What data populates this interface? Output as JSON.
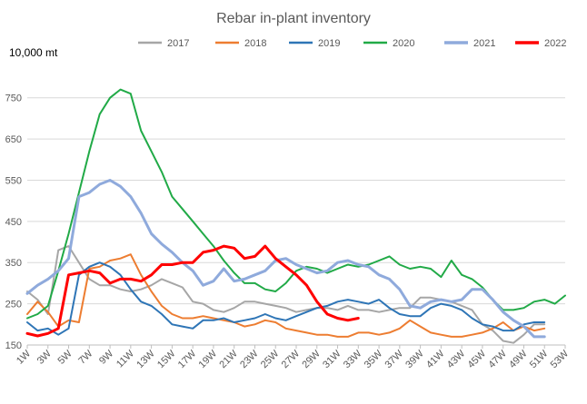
{
  "chart_data": {
    "type": "line",
    "title": "Rebar in-plant inventory",
    "unit_label": "10,000 mt",
    "ylim": [
      150,
      800
    ],
    "yticks": [
      150,
      250,
      350,
      450,
      550,
      650,
      750
    ],
    "grid": "horizontal",
    "legend_position": "top",
    "x_tick_labels": [
      "1W",
      "3W",
      "5W",
      "7W",
      "9W",
      "11W",
      "13W",
      "15W",
      "17W",
      "19W",
      "21W",
      "23W",
      "25W",
      "27W",
      "29W",
      "31W",
      "33W",
      "35W",
      "37W",
      "39W",
      "41W",
      "43W",
      "45W",
      "47W",
      "49W",
      "51W",
      "53W"
    ],
    "x": [
      1,
      2,
      3,
      4,
      5,
      6,
      7,
      8,
      9,
      10,
      11,
      12,
      13,
      14,
      15,
      16,
      17,
      18,
      19,
      20,
      21,
      22,
      23,
      24,
      25,
      26,
      27,
      28,
      29,
      30,
      31,
      32,
      33,
      34,
      35,
      36,
      37,
      38,
      39,
      40,
      41,
      42,
      43,
      44,
      45,
      46,
      47,
      48,
      49,
      50,
      51,
      52,
      53
    ],
    "series": [
      {
        "name": "2017",
        "color": "#a6a6a6",
        "width": 2,
        "values": [
          280,
          260,
          225,
          380,
          390,
          350,
          310,
          295,
          295,
          285,
          280,
          285,
          295,
          310,
          300,
          290,
          255,
          250,
          235,
          230,
          240,
          255,
          255,
          250,
          245,
          240,
          230,
          235,
          240,
          240,
          235,
          245,
          235,
          235,
          230,
          235,
          240,
          240,
          265,
          265,
          260,
          255,
          245,
          235,
          200,
          185,
          160,
          155,
          175,
          200,
          200,
          null,
          null
        ]
      },
      {
        "name": "2018",
        "color": "#ed7d31",
        "width": 2,
        "values": [
          225,
          255,
          230,
          195,
          210,
          205,
          335,
          340,
          355,
          360,
          370,
          320,
          280,
          245,
          225,
          215,
          215,
          220,
          215,
          210,
          205,
          195,
          200,
          210,
          205,
          190,
          185,
          180,
          175,
          175,
          170,
          170,
          180,
          180,
          175,
          180,
          190,
          210,
          195,
          180,
          175,
          170,
          170,
          175,
          180,
          190,
          205,
          185,
          195,
          185,
          190,
          null,
          null
        ]
      },
      {
        "name": "2019",
        "color": "#2e75b6",
        "width": 2,
        "values": [
          205,
          185,
          190,
          175,
          190,
          320,
          340,
          350,
          340,
          320,
          285,
          255,
          245,
          225,
          200,
          195,
          190,
          210,
          210,
          215,
          205,
          210,
          215,
          225,
          215,
          210,
          220,
          230,
          240,
          245,
          255,
          260,
          255,
          250,
          260,
          240,
          225,
          220,
          220,
          240,
          250,
          245,
          235,
          215,
          200,
          195,
          185,
          185,
          200,
          205,
          205,
          null,
          null
        ]
      },
      {
        "name": "2020",
        "color": "#21aa47",
        "width": 2,
        "values": [
          215,
          225,
          245,
          330,
          420,
          520,
          620,
          710,
          750,
          770,
          760,
          670,
          620,
          570,
          510,
          480,
          450,
          420,
          390,
          355,
          325,
          300,
          300,
          285,
          280,
          300,
          330,
          340,
          335,
          325,
          335,
          345,
          340,
          345,
          355,
          365,
          345,
          335,
          340,
          335,
          315,
          355,
          320,
          310,
          290,
          260,
          235,
          235,
          240,
          255,
          260,
          250,
          270
        ]
      },
      {
        "name": "2021",
        "color": "#8faadc",
        "width": 3,
        "values": [
          275,
          295,
          310,
          330,
          360,
          510,
          520,
          540,
          550,
          535,
          510,
          470,
          420,
          395,
          375,
          350,
          330,
          295,
          305,
          335,
          305,
          310,
          320,
          330,
          355,
          360,
          345,
          335,
          325,
          330,
          350,
          355,
          345,
          340,
          320,
          310,
          285,
          245,
          240,
          255,
          260,
          255,
          260,
          285,
          285,
          260,
          230,
          210,
          195,
          170,
          170,
          null,
          null
        ]
      },
      {
        "name": "2022",
        "color": "#ff0000",
        "width": 3,
        "values": [
          178,
          172,
          178,
          190,
          320,
          325,
          330,
          325,
          300,
          310,
          310,
          305,
          320,
          345,
          345,
          350,
          350,
          375,
          380,
          390,
          385,
          360,
          365,
          390,
          360,
          340,
          320,
          295,
          255,
          225,
          215,
          210,
          215,
          null,
          null,
          null,
          null,
          null,
          null,
          null,
          null,
          null,
          null,
          null,
          null,
          null,
          null,
          null,
          null,
          null,
          null,
          null,
          null
        ]
      }
    ]
  }
}
